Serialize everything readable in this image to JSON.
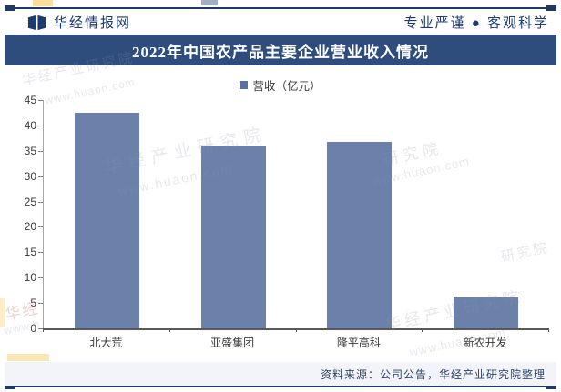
{
  "header": {
    "brand": "华经情报网",
    "slogan": "专业严谨 ● 客观科学"
  },
  "chart_data": {
    "type": "bar",
    "title": "2022年中国农产品主要企业营业收入情况",
    "categories": [
      "北大荒",
      "亚盛集团",
      "隆平高科",
      "新农开发"
    ],
    "series": [
      {
        "name": "营收（亿元）",
        "values": [
          42.5,
          36.1,
          36.8,
          6.1
        ]
      }
    ],
    "ylabel": "",
    "xlabel": "",
    "ylim": [
      0,
      45
    ],
    "y_ticks": [
      45,
      40,
      35,
      30,
      25,
      20,
      15,
      10,
      5,
      0
    ],
    "grid": false,
    "legend_position": "top",
    "bar_color": "#6b81a9"
  },
  "footer": {
    "source": "资料来源：公司公告，华经产业研究院整理"
  },
  "watermarks": {
    "name": "华经产业研究院",
    "url": "www.huaon.com",
    "name_part": "研究院",
    "name_short": "华经",
    "url_part": "www.h"
  },
  "colors": {
    "banner": "#2f4d7c",
    "frame_rule": "#1f3864",
    "bar": "#6b81a9",
    "legend_marker": "#5b70a2",
    "footer_bg": "#f3f4f9"
  }
}
